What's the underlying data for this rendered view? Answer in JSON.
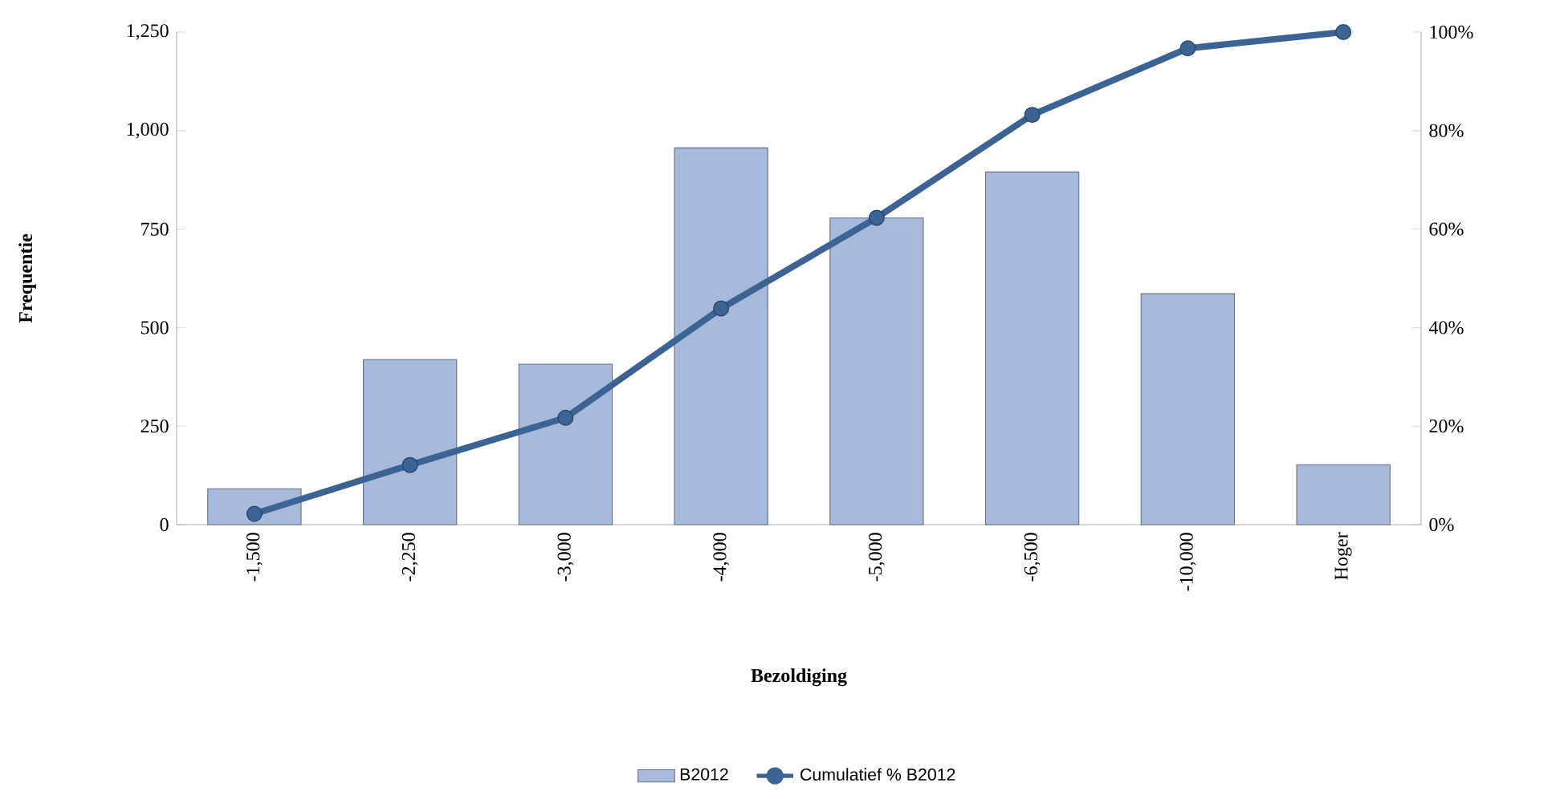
{
  "chart_data": {
    "type": "bar",
    "xlabel": "Bezoldiging",
    "ylabel": "Frequentie",
    "categories": [
      "-1,500",
      "-2,250",
      "-3,000",
      "-4,000",
      "-5,000",
      "-6,500",
      "-10,000",
      "Hoger"
    ],
    "series": [
      {
        "name": "B2012",
        "color": "#a7badc",
        "values": [
          91,
          419,
          407,
          956,
          778,
          895,
          586,
          152
        ]
      },
      {
        "name": "Cumulatief % B2012",
        "type": "line",
        "axis": "y2",
        "marker": "circle",
        "color": "#3b6394",
        "values": [
          2.2,
          12.1,
          21.7,
          43.9,
          62.3,
          83.2,
          96.7,
          100
        ]
      }
    ],
    "ylim": [
      0,
      1250
    ],
    "yticks": [
      0,
      250,
      500,
      750,
      {
        "value": 1000,
        "label": "1,000"
      },
      {
        "value": 1250,
        "label": "1,250"
      }
    ],
    "y2lim": [
      0,
      100
    ],
    "y2ticks": [
      {
        "value": 0,
        "label": "0%"
      },
      {
        "value": 20,
        "label": "20%"
      },
      {
        "value": 40,
        "label": "40%"
      },
      {
        "value": 60,
        "label": "60%"
      },
      {
        "value": 80,
        "label": "80%"
      },
      {
        "value": 100,
        "label": "100%"
      }
    ],
    "legend": "bottom"
  }
}
